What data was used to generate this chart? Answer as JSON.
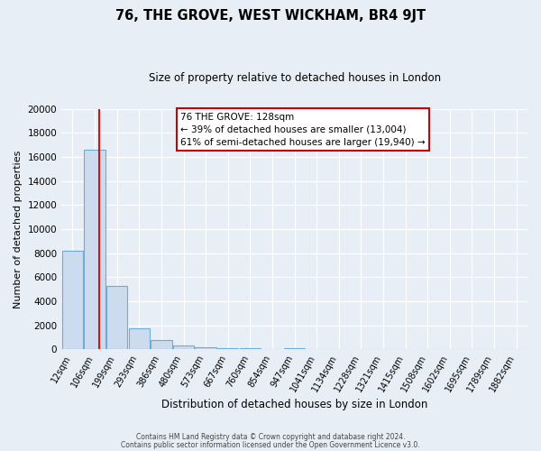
{
  "title": "76, THE GROVE, WEST WICKHAM, BR4 9JT",
  "subtitle": "Size of property relative to detached houses in London",
  "xlabel": "Distribution of detached houses by size in London",
  "ylabel": "Number of detached properties",
  "bar_labels": [
    "12sqm",
    "106sqm",
    "199sqm",
    "293sqm",
    "386sqm",
    "480sqm",
    "573sqm",
    "667sqm",
    "760sqm",
    "854sqm",
    "947sqm",
    "1041sqm",
    "1134sqm",
    "1228sqm",
    "1321sqm",
    "1415sqm",
    "1508sqm",
    "1602sqm",
    "1695sqm",
    "1789sqm",
    "1882sqm"
  ],
  "bar_values": [
    8200,
    16600,
    5300,
    1750,
    750,
    300,
    175,
    120,
    100,
    0,
    100,
    0,
    0,
    0,
    0,
    0,
    0,
    0,
    0,
    0,
    0
  ],
  "bar_color": "#ccdcee",
  "bar_edge_color": "#6aaed6",
  "red_line_x": 1.22,
  "ylim": [
    0,
    20000
  ],
  "yticks": [
    0,
    2000,
    4000,
    6000,
    8000,
    10000,
    12000,
    14000,
    16000,
    18000,
    20000
  ],
  "annotation_title": "76 THE GROVE: 128sqm",
  "annotation_line1": "← 39% of detached houses are smaller (13,004)",
  "annotation_line2": "61% of semi-detached houses are larger (19,940) →",
  "annotation_box_color": "#ffffff",
  "annotation_box_edge": "#cc0000",
  "footer_line1": "Contains HM Land Registry data © Crown copyright and database right 2024.",
  "footer_line2": "Contains public sector information licensed under the Open Government Licence v3.0.",
  "background_color": "#e8eef5",
  "plot_bg_color": "#e8eef5"
}
